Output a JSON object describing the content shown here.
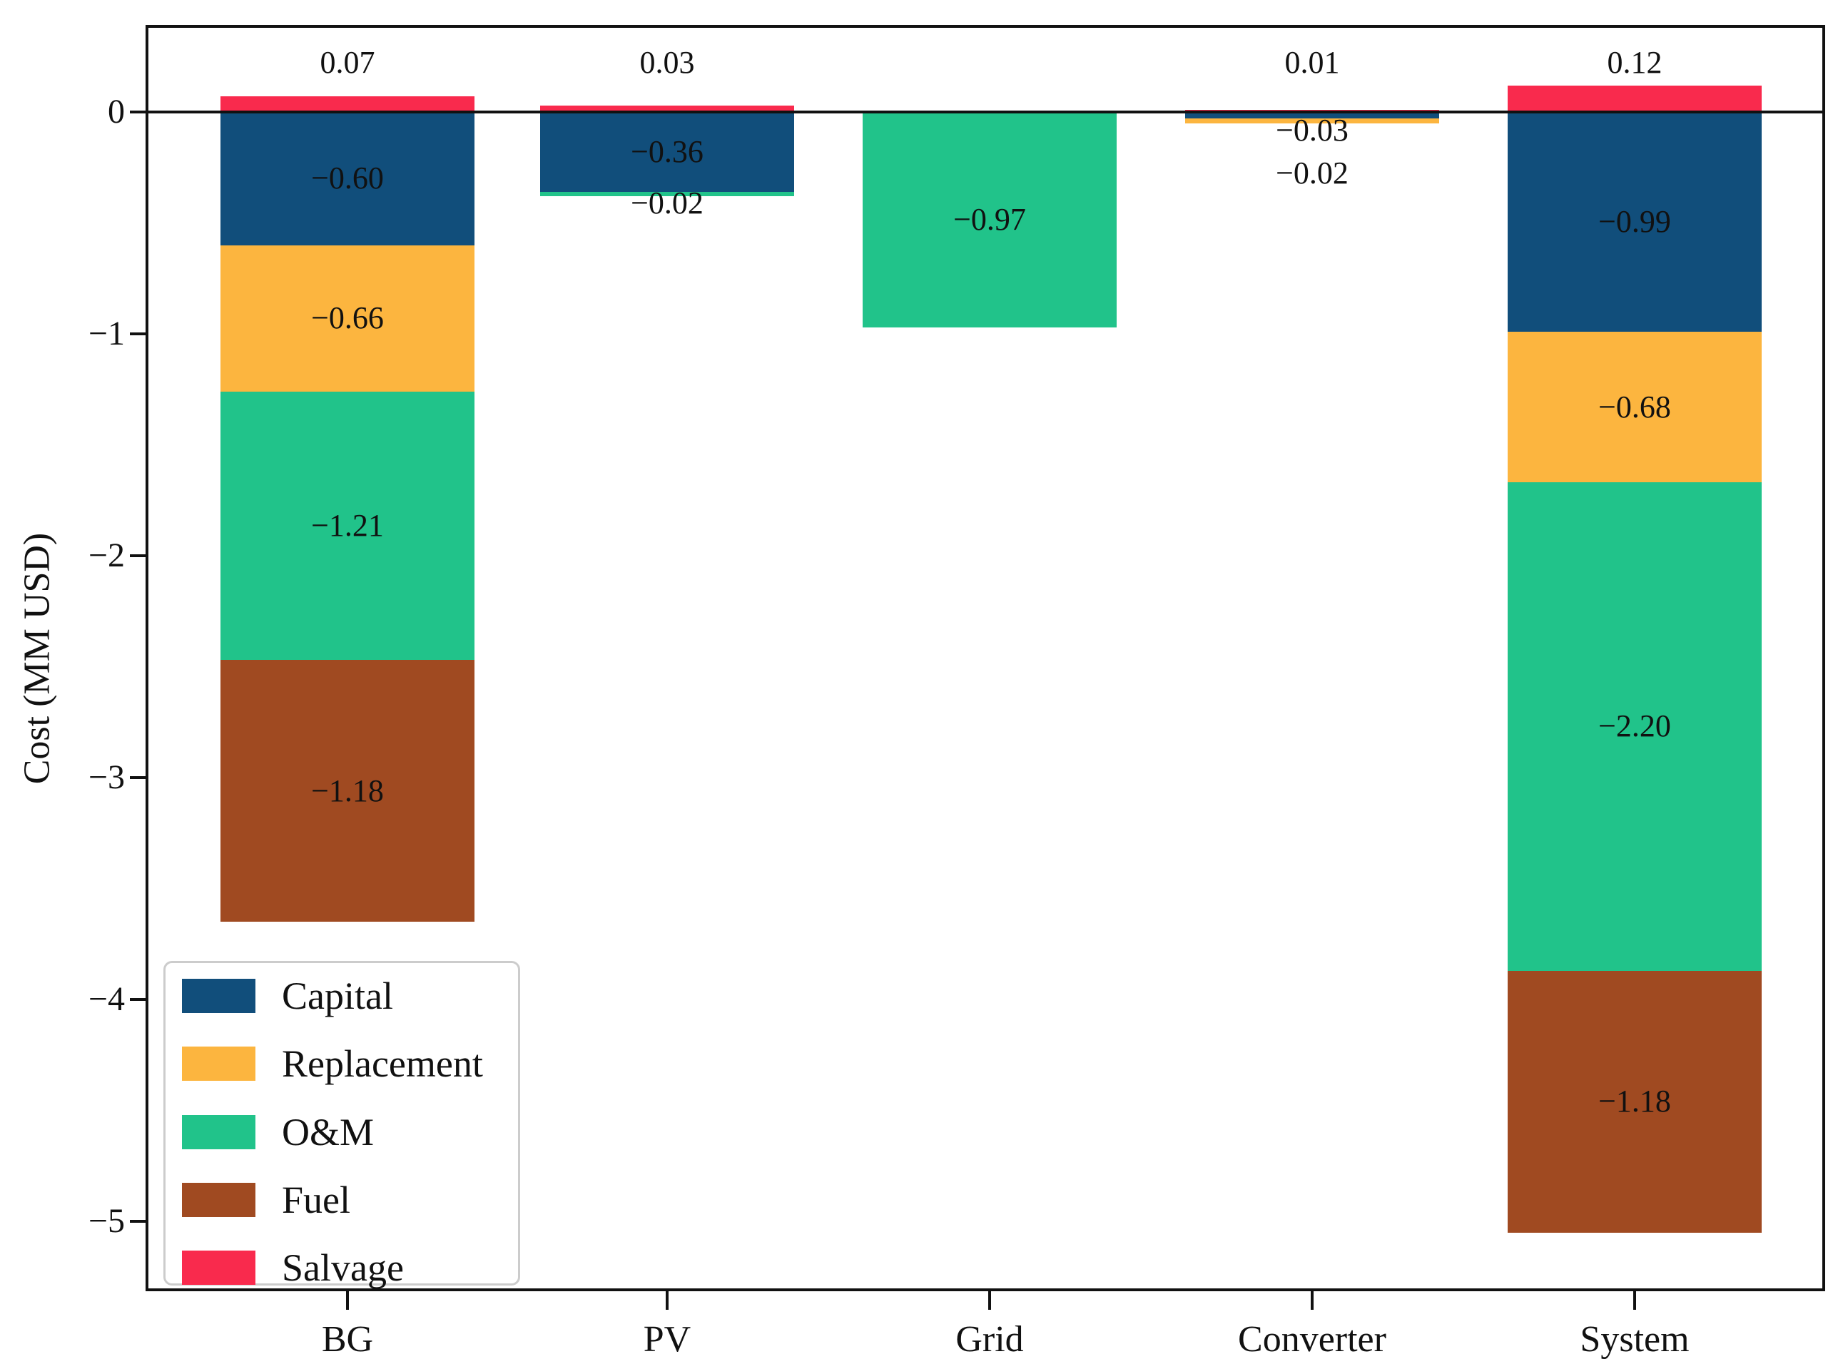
{
  "figure": {
    "background": "#ffffff",
    "axis_color": "#111111"
  },
  "chart_data": {
    "type": "bar",
    "stacked": true,
    "title": "",
    "xlabel": "",
    "ylabel": "Cost (MM USD)",
    "categories": [
      "BG",
      "PV",
      "Grid",
      "Converter",
      "System"
    ],
    "series": [
      {
        "name": "Capital",
        "color": "#114e7b",
        "values": [
          -0.6,
          -0.36,
          0,
          -0.03,
          -0.99
        ],
        "labels": [
          "−0.60",
          "−0.36",
          "",
          "−0.03",
          "−0.99"
        ]
      },
      {
        "name": "Replacement",
        "color": "#fcb53f",
        "values": [
          -0.66,
          0,
          0,
          -0.02,
          -0.68
        ],
        "labels": [
          "−0.66",
          "",
          "",
          "−0.02",
          "−0.68"
        ]
      },
      {
        "name": "O&M",
        "color": "#21c38a",
        "values": [
          -1.21,
          -0.02,
          -0.97,
          0,
          -2.2
        ],
        "labels": [
          "−1.21",
          "−0.02",
          "−0.97",
          "",
          "−2.20"
        ]
      },
      {
        "name": "Fuel",
        "color": "#a04a21",
        "values": [
          -1.18,
          0,
          0,
          0,
          -1.18
        ],
        "labels": [
          "−1.18",
          "",
          "",
          "",
          "−1.18"
        ]
      },
      {
        "name": "Salvage",
        "color": "#f92a4d",
        "values": [
          0.07,
          0.03,
          0,
          0.01,
          0.12
        ],
        "labels": [
          "",
          "",
          "",
          "",
          ""
        ]
      }
    ],
    "totals_above": [
      "0.07",
      "0.03",
      "",
      "0.01",
      "0.12"
    ],
    "yticks": {
      "values": [
        0,
        -1,
        -2,
        -3,
        -4,
        -5
      ],
      "labels": [
        "0",
        "−1",
        "−2",
        "−3",
        "−4",
        "−5"
      ]
    },
    "ylim": [
      -5.33,
      0.39
    ],
    "grid": false,
    "legend_position": "lower left",
    "legend_entries": [
      "Capital",
      "Replacement",
      "O&M",
      "Fuel",
      "Salvage"
    ]
  }
}
